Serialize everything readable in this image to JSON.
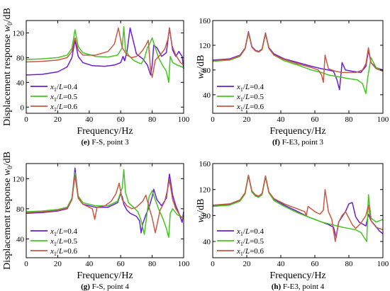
{
  "figure": {
    "legend_entries": [
      {
        "prefix": "x",
        "sub": "1",
        "mid": "/",
        "ital": "L",
        "suffix": "=0.4"
      },
      {
        "prefix": "x",
        "sub": "1",
        "mid": "/",
        "ital": "L",
        "suffix": "=0.5"
      },
      {
        "prefix": "x",
        "sub": "1",
        "mid": "/",
        "ital": "L",
        "suffix": "=0.6"
      }
    ],
    "series_colors": [
      "#6a1fd0",
      "#45c51f",
      "#c65a44"
    ],
    "highlight_color": "#ff66ff"
  },
  "chart_data": [
    {
      "type": "line",
      "caption_letter": "(e)",
      "caption_text": "F-S, point 3",
      "xlabel": "Frequency/Hz",
      "ylabel_main": "Displacement response ",
      "ylabel_var": "w",
      "ylabel_sub": "0",
      "ylabel_unit": "/dB",
      "xlim": [
        0,
        100
      ],
      "ylim": [
        -10,
        140
      ],
      "xticks": [
        0,
        20,
        40,
        60,
        80,
        100
      ],
      "yticks": [
        0,
        40,
        80,
        120
      ],
      "legend_position": "bottom-left",
      "series": [
        {
          "x": [
            0,
            10,
            20,
            26,
            29,
            31,
            33,
            36,
            42,
            50,
            56,
            60,
            61.5,
            62.5,
            64,
            66,
            70,
            74,
            77,
            79,
            80,
            81,
            83,
            86,
            89,
            91,
            93,
            95,
            97,
            99,
            100
          ],
          "y": [
            52,
            53,
            57,
            65,
            80,
            108,
            82,
            72,
            67,
            66,
            68,
            72,
            82,
            75,
            90,
            128,
            86,
            78,
            68,
            52,
            68,
            100,
            96,
            82,
            88,
            128,
            92,
            82,
            90,
            82,
            62
          ]
        },
        {
          "x": [
            0,
            10,
            20,
            26,
            29,
            31,
            33,
            36,
            44,
            52,
            58,
            61,
            62,
            63,
            65,
            68,
            71,
            73,
            75,
            77,
            78,
            80,
            82,
            84,
            87,
            89,
            90.5,
            91.5,
            93,
            96,
            100
          ],
          "y": [
            77,
            78,
            80,
            84,
            95,
            125,
            98,
            88,
            82,
            81,
            84,
            96,
            130,
            92,
            84,
            76,
            72,
            70,
            78,
            96,
            100,
            112,
            96,
            80,
            66,
            58,
            40,
            82,
            72,
            68,
            64
          ]
        },
        {
          "x": [
            0,
            10,
            20,
            26,
            29,
            31,
            33,
            36,
            44,
            52,
            56,
            58.5,
            61,
            64,
            67,
            70,
            72,
            74,
            76,
            77.5,
            79,
            80,
            82,
            85,
            88,
            90,
            91,
            92.5,
            95,
            98,
            100
          ],
          "y": [
            73,
            74,
            76,
            80,
            90,
            112,
            92,
            84,
            84,
            90,
            102,
            128,
            96,
            84,
            80,
            82,
            86,
            92,
            100,
            108,
            60,
            48,
            76,
            84,
            94,
            110,
            128,
            100,
            84,
            72,
            68
          ]
        }
      ]
    },
    {
      "type": "line",
      "caption_letter": "(f)",
      "caption_text": "F-E3, point 3",
      "xlabel": "Frequency/Hz",
      "ylabel_main": "",
      "ylabel_var": "w",
      "ylabel_sub": "0",
      "ylabel_unit": "/dB",
      "xlim": [
        0,
        100
      ],
      "ylim": [
        10,
        160
      ],
      "xticks": [
        0,
        20,
        40,
        60,
        80,
        100
      ],
      "yticks": [
        40,
        80,
        120,
        160
      ],
      "legend_position": "bottom-left",
      "series": [
        {
          "x": [
            0,
            10,
            16,
            19,
            21,
            23,
            25,
            27,
            29,
            31,
            33,
            36,
            42,
            50,
            58,
            64,
            68,
            71,
            73,
            74.5,
            76,
            78,
            82,
            87,
            90,
            91.5,
            93,
            96,
            100
          ],
          "y": [
            96,
            98,
            104,
            115,
            142,
            118,
            112,
            110,
            114,
            140,
            116,
            106,
            98,
            92,
            86,
            82,
            80,
            78,
            64,
            48,
            92,
            80,
            78,
            76,
            86,
            112,
            92,
            84,
            80
          ]
        },
        {
          "x": [
            0,
            10,
            16,
            19,
            21,
            23,
            25,
            27,
            29,
            31,
            33,
            36,
            42,
            50,
            58,
            64,
            68,
            72,
            76,
            80,
            85,
            88,
            90,
            91,
            93,
            96,
            100
          ],
          "y": [
            94,
            96,
            102,
            114,
            140,
            117,
            111,
            109,
            113,
            138,
            115,
            104,
            95,
            88,
            80,
            76,
            72,
            70,
            68,
            66,
            64,
            58,
            42,
            66,
            100,
            84,
            78
          ]
        },
        {
          "x": [
            0,
            10,
            16,
            19,
            21,
            23,
            25,
            27,
            29,
            31,
            33,
            36,
            42,
            50,
            58,
            62,
            64,
            65,
            66,
            68,
            72,
            76,
            80,
            84,
            88,
            90,
            91.5,
            93,
            96,
            100
          ],
          "y": [
            95,
            97,
            103,
            114,
            141,
            117,
            111,
            109,
            113,
            139,
            115,
            104,
            97,
            90,
            84,
            80,
            72,
            60,
            104,
            82,
            78,
            76,
            76,
            76,
            80,
            90,
            116,
            92,
            82,
            78
          ]
        }
      ]
    },
    {
      "type": "line",
      "caption_letter": "(g)",
      "caption_text": "F-S, point 4",
      "xlabel": "Frequency/Hz",
      "ylabel_main": "Displacement response ",
      "ylabel_var": "w",
      "ylabel_sub": "0",
      "ylabel_unit": "/dB",
      "xlim": [
        0,
        100
      ],
      "ylim": [
        15,
        140
      ],
      "xticks": [
        0,
        20,
        40,
        60,
        80,
        100
      ],
      "yticks": [
        40,
        80,
        120
      ],
      "legend_position": "bottom-left",
      "series": [
        {
          "x": [
            0,
            10,
            20,
            26,
            29,
            31,
            33,
            36,
            44,
            52,
            58,
            60,
            61,
            62,
            64,
            66,
            68,
            70,
            72,
            73,
            74,
            76,
            78,
            80,
            81,
            83,
            86,
            89,
            91,
            93,
            95,
            97,
            99,
            100
          ],
          "y": [
            74,
            75,
            77,
            80,
            92,
            134,
            95,
            86,
            82,
            82,
            88,
            100,
            96,
            86,
            78,
            74,
            72,
            70,
            64,
            48,
            60,
            72,
            82,
            96,
            106,
            92,
            84,
            94,
            126,
            98,
            84,
            74,
            62,
            76
          ]
        },
        {
          "x": [
            0,
            10,
            20,
            26,
            29,
            31,
            33,
            36,
            44,
            52,
            58,
            61,
            62,
            63,
            65,
            68,
            71,
            73,
            75,
            77,
            78,
            80,
            82,
            84,
            87,
            89,
            90.5,
            91.5,
            93,
            96,
            100
          ],
          "y": [
            76,
            77,
            79,
            82,
            94,
            128,
            97,
            88,
            84,
            84,
            90,
            108,
            132,
            102,
            88,
            82,
            76,
            64,
            46,
            78,
            96,
            104,
            92,
            80,
            66,
            54,
            42,
            74,
            80,
            72,
            68
          ]
        },
        {
          "x": [
            0,
            10,
            20,
            26,
            29,
            31,
            33,
            36,
            42,
            43.5,
            45,
            50,
            54,
            57,
            59,
            61,
            64,
            67,
            70,
            72,
            74,
            76,
            78,
            80,
            82,
            85,
            88,
            90,
            91,
            93,
            95,
            98,
            100
          ],
          "y": [
            75,
            76,
            78,
            81,
            92,
            124,
            94,
            86,
            80,
            66,
            82,
            84,
            90,
            100,
            114,
            92,
            84,
            80,
            82,
            86,
            90,
            98,
            82,
            68,
            48,
            78,
            90,
            108,
            118,
            92,
            80,
            70,
            66
          ]
        }
      ]
    },
    {
      "type": "line",
      "caption_letter": "(h)",
      "caption_text": "F-E3, point 4",
      "xlabel": "Frequency/Hz",
      "ylabel_main": "",
      "ylabel_var": "w",
      "ylabel_sub": "0",
      "ylabel_unit": "/dB",
      "xlim": [
        0,
        100
      ],
      "ylim": [
        15,
        160
      ],
      "xticks": [
        0,
        20,
        40,
        60,
        80,
        100
      ],
      "yticks": [
        40,
        80,
        120,
        160
      ],
      "legend_position": "bottom-left",
      "series": [
        {
          "x": [
            0,
            10,
            16,
            19,
            21,
            23,
            25,
            27,
            29,
            31,
            33,
            36,
            42,
            50,
            56,
            60,
            64,
            68,
            71,
            72.5,
            74,
            76,
            78,
            80,
            82,
            84,
            86,
            90,
            91.5,
            93,
            95,
            98,
            100
          ],
          "y": [
            95,
            97,
            103,
            114,
            142,
            117,
            111,
            109,
            113,
            140,
            116,
            105,
            96,
            86,
            78,
            74,
            70,
            66,
            62,
            46,
            70,
            78,
            86,
            98,
            100,
            78,
            70,
            64,
            82,
            72,
            66,
            56,
            52
          ]
        },
        {
          "x": [
            0,
            10,
            16,
            19,
            21,
            23,
            25,
            27,
            29,
            31,
            33,
            36,
            42,
            50,
            58,
            64,
            70,
            76,
            80,
            84,
            87,
            89,
            90.5,
            91.5,
            93,
            96,
            100
          ],
          "y": [
            94,
            96,
            102,
            113,
            141,
            116,
            110,
            108,
            112,
            139,
            115,
            103,
            94,
            84,
            76,
            70,
            66,
            62,
            60,
            58,
            54,
            46,
            40,
            112,
            76,
            70,
            74
          ]
        },
        {
          "x": [
            0,
            10,
            16,
            19,
            21,
            23,
            25,
            27,
            29,
            31,
            33,
            36,
            42,
            50,
            54,
            55,
            56,
            60,
            63,
            65,
            66,
            68,
            70,
            71,
            72,
            74,
            76,
            78,
            80,
            82,
            84,
            87,
            90,
            91.5,
            93,
            96,
            100
          ],
          "y": [
            96,
            98,
            104,
            115,
            142,
            118,
            112,
            110,
            114,
            141,
            116,
            106,
            98,
            90,
            86,
            80,
            94,
            86,
            82,
            88,
            120,
            86,
            74,
            56,
            40,
            70,
            80,
            86,
            76,
            66,
            60,
            68,
            80,
            96,
            72,
            62,
            58
          ]
        }
      ]
    }
  ]
}
